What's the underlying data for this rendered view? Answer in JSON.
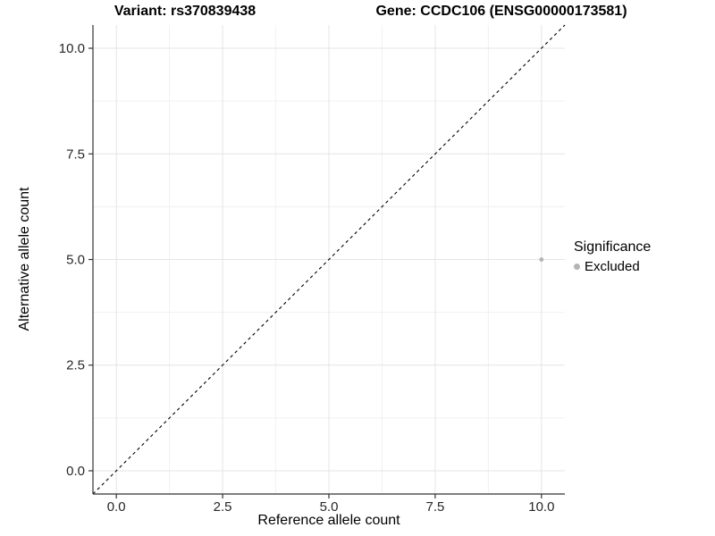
{
  "chart_data": {
    "type": "scatter",
    "title_left": "Variant: rs370839438",
    "title_right": "Gene: CCDC106 (ENSG00000173581)",
    "xlabel": "Reference allele count",
    "ylabel": "Alternative allele count",
    "xlim": [
      -0.55,
      10.55
    ],
    "ylim": [
      -0.55,
      10.55
    ],
    "xticks": [
      0,
      2.5,
      5,
      7.5,
      10
    ],
    "yticks": [
      0,
      2.5,
      5,
      7.5,
      10
    ],
    "xtick_labels": [
      "0.0",
      "2.5",
      "5.0",
      "7.5",
      "10.0"
    ],
    "ytick_labels": [
      "0.0",
      "2.5",
      "5.0",
      "7.5",
      "10.0"
    ],
    "xminor_ticks": [
      1.25,
      3.75,
      6.25,
      8.75
    ],
    "yminor_ticks": [
      1.25,
      3.75,
      6.25,
      8.75
    ],
    "grid": true,
    "identity_line": {
      "style": "dashed",
      "color": "#000000",
      "from": [
        -0.55,
        -0.55
      ],
      "to": [
        10.55,
        10.55
      ]
    },
    "series": [
      {
        "name": "Excluded",
        "color": "#b4b4b4",
        "points": [
          {
            "x": 10,
            "y": 5
          }
        ]
      }
    ],
    "legend": {
      "title": "Significance",
      "position": "right",
      "items": [
        {
          "label": "Excluded",
          "color": "#b4b4b4"
        }
      ]
    }
  }
}
